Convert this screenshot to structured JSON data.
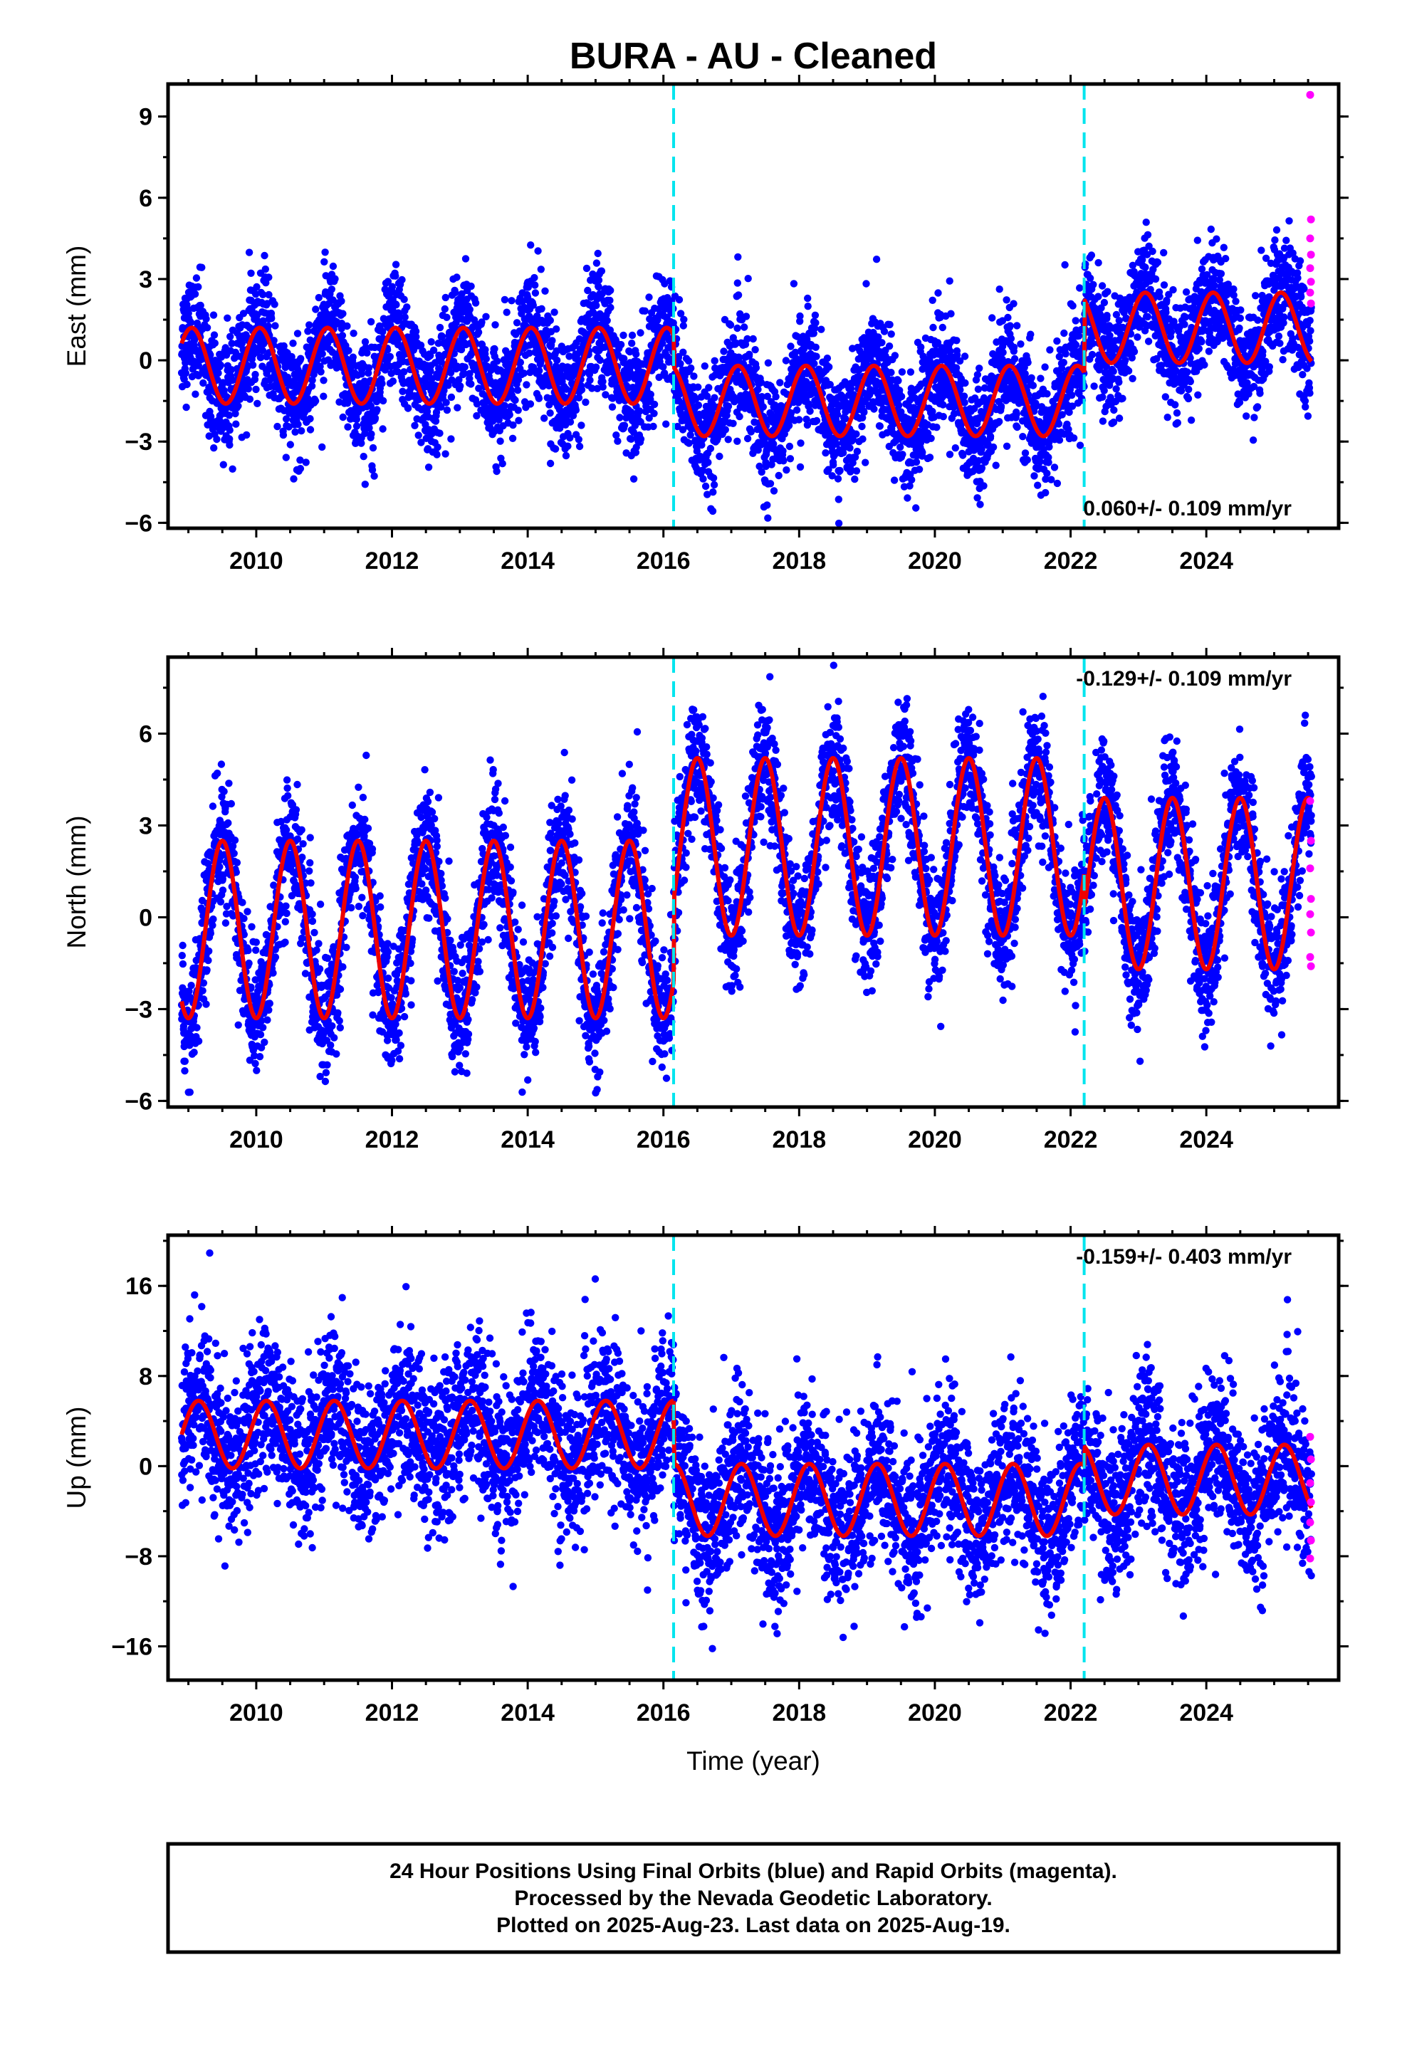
{
  "title": "BURA  - AU - Cleaned",
  "x_label": "Time (year)",
  "footer": {
    "line1": "24 Hour Positions Using Final Orbits (blue) and Rapid Orbits (magenta).",
    "line2": "Processed by the Nevada Geodetic Laboratory.",
    "line3": "Plotted on 2025-Aug-23. Last data on 2025-Aug-19."
  },
  "colors": {
    "final_orbits": "#0000ff",
    "rapid_orbits": "#ff00ff",
    "model_fit": "#ee0000",
    "equipment_change": "#00e5ee",
    "frame": "#000000"
  },
  "chart_data": [
    {
      "type": "scatter",
      "panel": "east",
      "ylabel": "East (mm)",
      "rate_text": "0.060+/- 0.109 mm/yr",
      "rate_position": "bottom-right",
      "xlim": [
        2008.7,
        2025.95
      ],
      "ylim": [
        -6.2,
        10.2
      ],
      "y_ticks": [
        -6,
        -3,
        0,
        3,
        6,
        9
      ],
      "x_ticks": [
        2010,
        2012,
        2014,
        2016,
        2018,
        2020,
        2022,
        2024
      ],
      "show_x_tick_labels": true,
      "data_start": 2008.9,
      "data_end": 2025.55,
      "offset_epochs": [
        2016.15,
        2022.2
      ],
      "model_segments": [
        {
          "start": 2008.9,
          "end": 2016.15,
          "mean": -0.2,
          "amplitude": 1.4,
          "peak_phase": 0.05
        },
        {
          "start": 2016.15,
          "end": 2022.2,
          "mean": -1.5,
          "amplitude": 1.3,
          "peak_phase": 0.1
        },
        {
          "start": 2022.2,
          "end": 2025.55,
          "mean": 1.2,
          "amplitude": 1.3,
          "peak_phase": 0.1
        }
      ],
      "scatter_sigma": 1.05,
      "rapid_values": [
        9.8,
        5.2,
        4.5,
        3.9,
        3.4,
        2.9,
        2.5,
        2.1
      ]
    },
    {
      "type": "scatter",
      "panel": "north",
      "ylabel": "North (mm)",
      "rate_text": "-0.129+/- 0.109 mm/yr",
      "rate_position": "top-right",
      "xlim": [
        2008.7,
        2025.95
      ],
      "ylim": [
        -6.2,
        8.5
      ],
      "y_ticks": [
        -6,
        -3,
        0,
        3,
        6
      ],
      "x_ticks": [
        2010,
        2012,
        2014,
        2016,
        2018,
        2020,
        2022,
        2024
      ],
      "show_x_tick_labels": true,
      "data_start": 2008.9,
      "data_end": 2025.55,
      "offset_epochs": [
        2016.15,
        2022.2
      ],
      "model_segments": [
        {
          "start": 2008.9,
          "end": 2016.15,
          "mean": -0.4,
          "amplitude": 2.9,
          "peak_phase": 0.5
        },
        {
          "start": 2016.15,
          "end": 2022.2,
          "mean": 2.3,
          "amplitude": 2.9,
          "peak_phase": 0.5
        },
        {
          "start": 2022.2,
          "end": 2025.55,
          "mean": 1.1,
          "amplitude": 2.8,
          "peak_phase": 0.5
        }
      ],
      "scatter_sigma": 1.0,
      "rapid_values": [
        3.8,
        2.5,
        1.6,
        0.6,
        0.1,
        -0.5,
        -1.3,
        -1.6
      ]
    },
    {
      "type": "scatter",
      "panel": "up",
      "ylabel": "Up (mm)",
      "rate_text": "-0.159+/- 0.403 mm/yr",
      "rate_position": "top-right",
      "xlim": [
        2008.7,
        2025.95
      ],
      "ylim": [
        -19.0,
        20.5
      ],
      "y_ticks": [
        -16,
        -8,
        0,
        8,
        16
      ],
      "x_ticks": [
        2010,
        2012,
        2014,
        2016,
        2018,
        2020,
        2022,
        2024
      ],
      "show_x_tick_labels": true,
      "data_start": 2008.9,
      "data_end": 2025.55,
      "offset_epochs": [
        2016.15,
        2022.2
      ],
      "model_segments": [
        {
          "start": 2008.9,
          "end": 2016.15,
          "mean": 2.8,
          "amplitude": 3.0,
          "peak_phase": 0.15
        },
        {
          "start": 2016.15,
          "end": 2022.2,
          "mean": -3.0,
          "amplitude": 3.2,
          "peak_phase": 0.15
        },
        {
          "start": 2022.2,
          "end": 2025.55,
          "mean": -1.2,
          "amplitude": 3.1,
          "peak_phase": 0.15
        }
      ],
      "scatter_sigma": 3.4,
      "rapid_values": [
        2.6,
        0.6,
        -1.5,
        -3.2,
        -5.0,
        -6.6,
        -8.2
      ]
    }
  ]
}
